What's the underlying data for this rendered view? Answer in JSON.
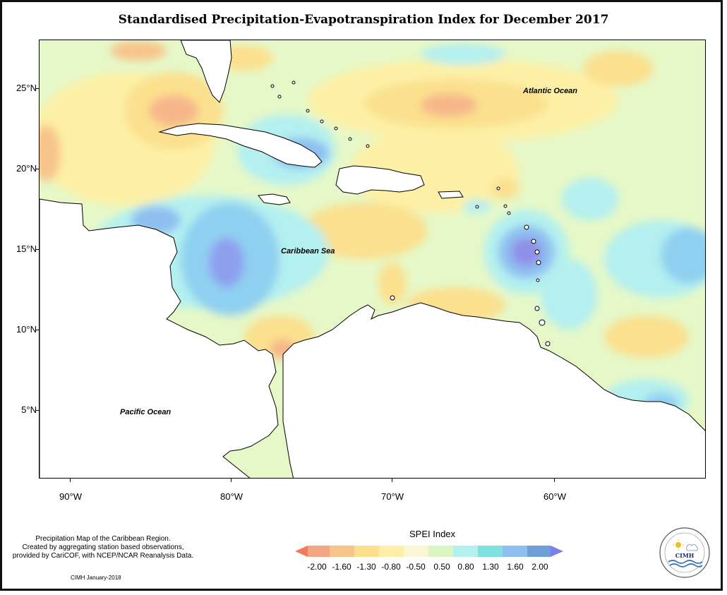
{
  "title": "Standardised Precipitation-Evapotranspiration Index for December 2017",
  "map": {
    "y_axis_labels": [
      "25°N",
      "20°N",
      "15°N",
      "10°N",
      "5°N"
    ],
    "x_axis_labels": [
      "90°W",
      "80°W",
      "70°W",
      "60°W"
    ],
    "labels": {
      "atlantic": "Atlantic Ocean",
      "caribbean": "Caribbean Sea",
      "pacific": "Pacific Ocean"
    },
    "colors": {
      "ocean_base": "#e6f8c8",
      "land": "#ffffff"
    }
  },
  "credits": {
    "lines": [
      "Precipitation Map of the Caribbean Region.",
      "Created by aggregating station based observations,",
      "provided by CariCOF, with NCEP/NCAR Reanalysis Data."
    ],
    "date": "CIMH January-2018"
  },
  "legend": {
    "title": "SPEI Index",
    "ticks": [
      "-2.00",
      "-1.60",
      "-1.30",
      "-0.80",
      "-0.50",
      "0.50",
      "0.80",
      "1.30",
      "1.60",
      "2.00"
    ],
    "colors": [
      "#f4a582",
      "#f7c48a",
      "#fbe08e",
      "#fdf3a6",
      "#faf5d2",
      "#d9f5c2",
      "#b4f0f0",
      "#7fe0e0",
      "#8fbff0",
      "#6f9fd8",
      "#7f7fe8"
    ]
  },
  "logo": {
    "text": "CIMH"
  }
}
